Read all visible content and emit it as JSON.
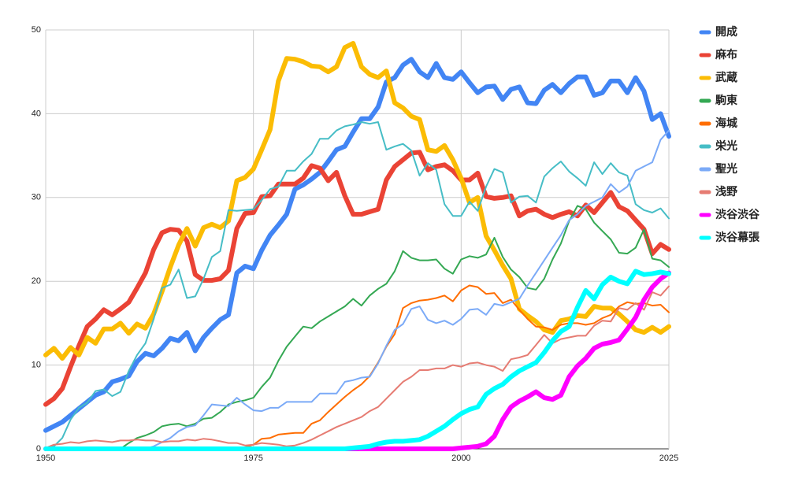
{
  "chart_data": {
    "type": "line",
    "x": [
      1950,
      1951,
      1952,
      1953,
      1954,
      1955,
      1956,
      1957,
      1958,
      1959,
      1960,
      1961,
      1962,
      1963,
      1964,
      1965,
      1966,
      1967,
      1968,
      1969,
      1970,
      1971,
      1972,
      1973,
      1974,
      1975,
      1976,
      1977,
      1978,
      1979,
      1980,
      1981,
      1982,
      1983,
      1984,
      1985,
      1986,
      1987,
      1988,
      1989,
      1990,
      1991,
      1992,
      1993,
      1994,
      1995,
      1996,
      1997,
      1998,
      1999,
      2000,
      2001,
      2002,
      2003,
      2004,
      2005,
      2006,
      2007,
      2008,
      2009,
      2010,
      2011,
      2012,
      2013,
      2014,
      2015,
      2016,
      2017,
      2018,
      2019,
      2020,
      2021,
      2022,
      2023,
      2024,
      2025
    ],
    "xlim": [
      1950,
      2025
    ],
    "xticks": [
      1950,
      1975,
      2000,
      2025
    ],
    "ylim": [
      0,
      50
    ],
    "yticks": [
      0,
      10,
      20,
      30,
      40,
      50
    ],
    "grid": true,
    "legend": "right",
    "series": [
      {
        "name": "開成",
        "color": "#4285f4",
        "width": 6,
        "values": [
          2.2,
          2.7,
          3.2,
          4,
          4.8,
          5.6,
          6.4,
          6.8,
          8,
          8.3,
          8.7,
          10.4,
          11.4,
          11.1,
          12,
          13.2,
          12.9,
          13.9,
          11.7,
          13.3,
          14.4,
          15.4,
          16,
          21,
          21.8,
          21.5,
          23.7,
          25.5,
          26.7,
          28,
          31,
          31.5,
          32.2,
          33,
          34.3,
          35.7,
          36.1,
          37.8,
          39.4,
          39.4,
          40.8,
          43.8,
          44.3,
          45.8,
          46.5,
          45,
          44.3,
          46,
          44.3,
          44.1,
          45,
          43.7,
          42.5,
          43.2,
          43.3,
          41.7,
          42.9,
          43.2,
          41.3,
          41.2,
          42.8,
          43.5,
          42.5,
          43.6,
          44.4,
          44.4,
          42.2,
          42.5,
          43.9,
          43.9,
          42.5,
          44.3,
          42.7,
          39.3,
          40,
          37.3
        ]
      },
      {
        "name": "麻布",
        "color": "#ea4335",
        "width": 6,
        "values": [
          5.3,
          6,
          7.2,
          9.8,
          12.3,
          14.6,
          15.5,
          16.6,
          16,
          16.7,
          17.5,
          19.2,
          21,
          23.8,
          25.8,
          26.2,
          26.1,
          24.8,
          20.8,
          20.1,
          20.1,
          20.3,
          21.3,
          26.3,
          28.1,
          28.2,
          30.1,
          30.2,
          31.6,
          31.6,
          31.6,
          32.3,
          33.8,
          33.5,
          32,
          33,
          30.2,
          28,
          28,
          28.3,
          28.6,
          32.1,
          33.7,
          34.5,
          35.3,
          35.4,
          33.3,
          33.7,
          33.9,
          33.2,
          32.1,
          32.1,
          32.9,
          30.1,
          29.9,
          30,
          30.2,
          27.8,
          28.4,
          28.6,
          28,
          27.6,
          28,
          28.3,
          27.8,
          29.1,
          28.2,
          29.4,
          30.6,
          28.9,
          28.4,
          27.3,
          26.2,
          23.3,
          24.4,
          23.8
        ]
      },
      {
        "name": "武蔵",
        "color": "#fbbc04",
        "width": 6,
        "values": [
          11.2,
          12,
          10.8,
          12.1,
          11.2,
          13.3,
          12.6,
          14.3,
          14.3,
          15,
          13.8,
          14.9,
          14.4,
          16.1,
          18.8,
          21.7,
          24.3,
          26.3,
          24.2,
          26.4,
          26.8,
          26.4,
          27.2,
          32,
          32.4,
          33.4,
          35.7,
          38.1,
          43.9,
          46.6,
          46.5,
          46.2,
          45.7,
          45.6,
          45,
          45.6,
          47.9,
          48.4,
          45.6,
          44.7,
          44.3,
          45.1,
          41.3,
          40.7,
          39.7,
          39.3,
          35.7,
          35.5,
          36.2,
          34.5,
          32.3,
          29.4,
          30,
          25.4,
          23.7,
          21.9,
          20.3,
          16.7,
          15.9,
          15.2,
          14.2,
          13.9,
          15.3,
          15.5,
          15.9,
          15.8,
          17,
          16.8,
          16.8,
          16.1,
          15.2,
          14.2,
          13.9,
          14.5,
          13.9,
          14.6
        ]
      },
      {
        "name": "駒東",
        "color": "#34a853",
        "width": 2,
        "values": [
          0,
          0,
          0,
          0,
          0,
          0,
          0,
          0,
          0,
          0,
          0.7,
          1.3,
          1.6,
          2,
          2.7,
          2.9,
          3,
          2.7,
          3,
          3.6,
          3.7,
          4.4,
          5.3,
          5.6,
          5.8,
          6.1,
          7.4,
          8.5,
          10.5,
          12.2,
          13.4,
          14.6,
          14.4,
          15.2,
          15.8,
          16.4,
          17,
          17.9,
          17.1,
          18.3,
          19.1,
          19.7,
          21.2,
          23.6,
          22.8,
          22.5,
          22.5,
          22.6,
          21.5,
          20.9,
          22.6,
          23,
          22.8,
          23.2,
          25.2,
          22.9,
          21.4,
          20.5,
          19.2,
          19,
          20.3,
          22.6,
          24.5,
          27.2,
          29,
          28.6,
          27,
          26,
          25,
          23.4,
          23.3,
          24,
          26.2,
          22.7,
          22.5,
          21.7
        ]
      },
      {
        "name": "海城",
        "color": "#ff6d01",
        "width": 2,
        "values": [
          0,
          0,
          0,
          0,
          0,
          0,
          0,
          0,
          0,
          0,
          0,
          0,
          0,
          0,
          0,
          0,
          0,
          0,
          0,
          0,
          0,
          0,
          0,
          0,
          0.2,
          0.5,
          1.2,
          1.3,
          1.7,
          1.8,
          1.9,
          1.9,
          3,
          3.4,
          4.4,
          5.3,
          6.2,
          7,
          7.7,
          8.7,
          10.3,
          12.2,
          13.7,
          16.8,
          17.4,
          17.7,
          17.8,
          18,
          18.3,
          17.6,
          18.9,
          19.5,
          19.3,
          18.5,
          18.6,
          17.4,
          17.8,
          16.6,
          15.5,
          14.6,
          14.5,
          14.2,
          14.8,
          15,
          15,
          14.8,
          15,
          15.6,
          16,
          17,
          17.5,
          17.3,
          17.4,
          17.1,
          17.2,
          16.3
        ]
      },
      {
        "name": "栄光",
        "color": "#46bdc6",
        "width": 2,
        "values": [
          0,
          0.3,
          1.3,
          3.5,
          4.9,
          5.5,
          6.9,
          7.1,
          6.3,
          6.8,
          9.3,
          11.2,
          12.6,
          15.5,
          19.2,
          19.6,
          21.4,
          18,
          18.2,
          20.3,
          22.9,
          23.6,
          28.5,
          28.4,
          28.5,
          28.6,
          29.7,
          31,
          31.3,
          33.2,
          33.2,
          34.3,
          35.2,
          37,
          37,
          38,
          38.5,
          38.7,
          39,
          38.8,
          39,
          35.7,
          36.1,
          36.4,
          35.6,
          32.6,
          34.1,
          33.3,
          29.2,
          27.8,
          27.8,
          29.5,
          28.4,
          31.3,
          33.4,
          33,
          29.4,
          30.1,
          30.2,
          29.4,
          32.5,
          33.5,
          34.3,
          33.1,
          32.3,
          31.4,
          34.2,
          32.8,
          34.1,
          33,
          32.6,
          29.2,
          28.5,
          28.2,
          28.7,
          27.5
        ]
      },
      {
        "name": "聖光",
        "color": "#7baaf7",
        "width": 2,
        "values": [
          0,
          0,
          0,
          0,
          0,
          0,
          0,
          0,
          0,
          0,
          0,
          0,
          0,
          0.3,
          0.8,
          1.3,
          2.1,
          2.6,
          2.8,
          4,
          5.3,
          5.2,
          5.1,
          6.1,
          5.3,
          4.6,
          4.5,
          4.9,
          4.9,
          5.6,
          5.6,
          5.6,
          5.6,
          6.6,
          6.6,
          6.6,
          8,
          8.2,
          8.5,
          8.6,
          10.2,
          12.3,
          14.2,
          14.9,
          16.7,
          17,
          15.4,
          15,
          15.3,
          14.8,
          15.5,
          16.6,
          16.7,
          16,
          17.3,
          17.1,
          17.5,
          17.9,
          19.5,
          21,
          22.5,
          24,
          25.5,
          27.3,
          28,
          29,
          29.5,
          30,
          31.6,
          30.6,
          31.3,
          33.2,
          33.7,
          34.2,
          36.9,
          38
        ]
      },
      {
        "name": "浅野",
        "color": "#e67c73",
        "width": 2,
        "values": [
          0.1,
          0.5,
          0.6,
          0.8,
          0.7,
          0.9,
          1,
          0.9,
          0.8,
          1,
          1,
          1.1,
          1,
          1,
          0.8,
          0.9,
          0.9,
          1.1,
          1,
          1.2,
          1.1,
          0.9,
          0.7,
          0.7,
          0.4,
          0.5,
          0.7,
          0.6,
          0.5,
          0.3,
          0.4,
          0.7,
          1.1,
          1.6,
          2.1,
          2.6,
          3,
          3.4,
          3.8,
          4.5,
          5,
          6,
          7,
          8,
          8.6,
          9.4,
          9.4,
          9.6,
          9.6,
          10,
          9.8,
          10.2,
          10.3,
          10,
          9.8,
          9.3,
          10.7,
          10.9,
          11.2,
          12.4,
          13.6,
          12.6,
          13.1,
          13.3,
          13.5,
          13.5,
          14.7,
          15.3,
          15.2,
          16.8,
          16.6,
          17.4,
          16.6,
          18.7,
          18.3,
          19.4
        ]
      },
      {
        "name": "渋谷渋谷",
        "color": "#ff00ff",
        "width": 6,
        "values": [
          0,
          0,
          0,
          0,
          0,
          0,
          0,
          0,
          0,
          0,
          0,
          0,
          0,
          0,
          0,
          0,
          0,
          0,
          0,
          0,
          0,
          0,
          0,
          0,
          0,
          0,
          0,
          0,
          0,
          0,
          0,
          0,
          0,
          0,
          0,
          0,
          0,
          0,
          0,
          0,
          0,
          0,
          0,
          0,
          0,
          0,
          0,
          0,
          0,
          0,
          0.1,
          0.2,
          0.3,
          0.6,
          1.5,
          3.5,
          5,
          5.7,
          6.2,
          6.8,
          6.1,
          5.9,
          6.4,
          8.6,
          9.9,
          10.8,
          12,
          12.5,
          12.7,
          13,
          14.3,
          15.7,
          17.8,
          19.3,
          20.3,
          21
        ]
      },
      {
        "name": "渋谷幕張",
        "color": "#00ffff",
        "width": 6,
        "values": [
          0,
          0,
          0,
          0,
          0,
          0,
          0,
          0,
          0,
          0,
          0,
          0,
          0,
          0,
          0,
          0,
          0,
          0,
          0,
          0,
          0,
          0,
          0,
          0,
          0,
          0,
          0,
          0,
          0,
          0,
          0,
          0,
          0,
          0,
          0,
          0,
          0,
          0.1,
          0.2,
          0.3,
          0.6,
          0.8,
          0.9,
          0.9,
          1,
          1.1,
          1.5,
          2.1,
          2.7,
          3.5,
          4.2,
          4.7,
          5,
          6.5,
          7.2,
          7.7,
          8.6,
          9.3,
          9.8,
          10.3,
          11.5,
          12.9,
          14,
          14.6,
          16.9,
          18.9,
          17.9,
          19.6,
          20.5,
          20,
          19.7,
          21.2,
          20.8,
          20.9,
          21.1,
          20.9
        ]
      }
    ]
  }
}
